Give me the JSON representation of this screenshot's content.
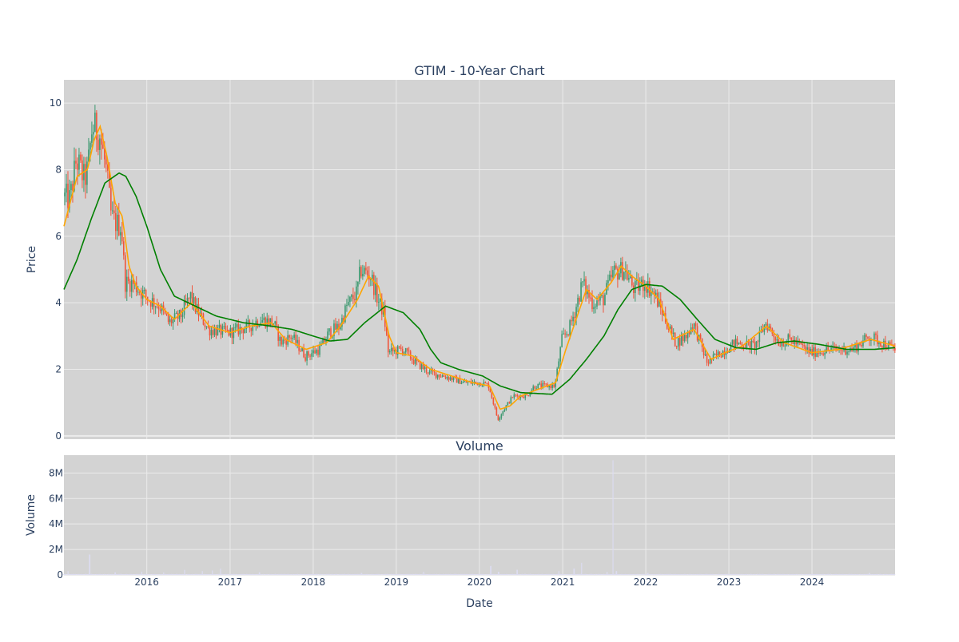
{
  "chart_data": [
    {
      "type": "candlestick",
      "title": "GTIM - 10-Year Chart",
      "xlabel": "",
      "ylabel": "Price",
      "x_range": [
        "2015-01-02",
        "2024-12-31"
      ],
      "ylim": [
        -0.1,
        10.7
      ],
      "y_ticks": [
        0,
        2,
        4,
        6,
        8,
        10
      ],
      "grid": true,
      "up_color": "#3d9970",
      "down_color": "#ef553b",
      "background": "#d3d3d3",
      "price_anchors": [
        [
          "2015-01-02",
          7.2
        ],
        [
          "2015-02-01",
          7.1
        ],
        [
          "2015-03-01",
          8.3
        ],
        [
          "2015-04-05",
          7.7
        ],
        [
          "2015-04-20",
          8.0
        ],
        [
          "2015-05-10",
          9.3
        ],
        [
          "2015-06-10",
          9.1
        ],
        [
          "2015-07-10",
          8.0
        ],
        [
          "2015-08-01",
          6.6
        ],
        [
          "2015-08-20",
          6.4
        ],
        [
          "2015-09-15",
          6.3
        ],
        [
          "2015-10-01",
          4.6
        ],
        [
          "2015-11-01",
          4.6
        ],
        [
          "2015-12-15",
          4.3
        ],
        [
          "2016-01-15",
          4.1
        ],
        [
          "2016-03-01",
          3.9
        ],
        [
          "2016-04-10",
          3.4
        ],
        [
          "2016-06-01",
          3.6
        ],
        [
          "2016-07-15",
          4.2
        ],
        [
          "2016-08-01",
          3.9
        ],
        [
          "2016-10-01",
          3.2
        ],
        [
          "2017-01-01",
          3.1
        ],
        [
          "2017-04-01",
          3.3
        ],
        [
          "2017-05-15",
          3.5
        ],
        [
          "2017-07-15",
          3.4
        ],
        [
          "2017-08-15",
          2.8
        ],
        [
          "2017-10-01",
          3.0
        ],
        [
          "2017-12-01",
          2.4
        ],
        [
          "2018-02-01",
          2.6
        ],
        [
          "2018-03-15",
          3.1
        ],
        [
          "2018-05-01",
          3.3
        ],
        [
          "2018-06-01",
          3.9
        ],
        [
          "2018-07-15",
          4.3
        ],
        [
          "2018-08-01",
          5.0
        ],
        [
          "2018-09-15",
          4.8
        ],
        [
          "2018-10-15",
          4.1
        ],
        [
          "2018-11-10",
          3.7
        ],
        [
          "2018-12-01",
          2.5
        ],
        [
          "2019-02-01",
          2.6
        ],
        [
          "2019-04-01",
          2.2
        ],
        [
          "2019-06-01",
          1.9
        ],
        [
          "2019-08-01",
          1.8
        ],
        [
          "2019-11-01",
          1.6
        ],
        [
          "2020-01-15",
          1.6
        ],
        [
          "2020-02-15",
          1.5
        ],
        [
          "2020-03-25",
          0.5
        ],
        [
          "2020-05-01",
          0.9
        ],
        [
          "2020-06-01",
          1.2
        ],
        [
          "2020-08-01",
          1.2
        ],
        [
          "2020-09-01",
          1.5
        ],
        [
          "2020-12-01",
          1.5
        ],
        [
          "2021-01-01",
          2.9
        ],
        [
          "2021-02-01",
          3.2
        ],
        [
          "2021-03-01",
          3.8
        ],
        [
          "2021-04-01",
          4.6
        ],
        [
          "2021-05-15",
          4.0
        ],
        [
          "2021-07-01",
          4.1
        ],
        [
          "2021-08-15",
          4.9
        ],
        [
          "2021-10-01",
          5.0
        ],
        [
          "2021-11-15",
          4.4
        ],
        [
          "2022-01-01",
          4.6
        ],
        [
          "2022-02-15",
          4.2
        ],
        [
          "2022-04-01",
          3.5
        ],
        [
          "2022-05-15",
          2.8
        ],
        [
          "2022-07-01",
          3.0
        ],
        [
          "2022-08-01",
          3.4
        ],
        [
          "2022-10-01",
          2.2
        ],
        [
          "2022-12-01",
          2.5
        ],
        [
          "2023-02-01",
          2.8
        ],
        [
          "2023-05-01",
          2.7
        ],
        [
          "2023-06-15",
          3.4
        ],
        [
          "2023-08-15",
          2.8
        ],
        [
          "2023-10-01",
          2.9
        ],
        [
          "2024-01-01",
          2.5
        ],
        [
          "2024-04-01",
          2.6
        ],
        [
          "2024-07-01",
          2.6
        ],
        [
          "2024-09-15",
          3.0
        ],
        [
          "2024-12-31",
          2.6
        ]
      ],
      "series": [
        {
          "values": [
            [
              "2015-01-02",
              6.3
            ],
            [
              "2015-03-01",
              7.8
            ],
            [
              "2015-04-15",
              8.0
            ],
            [
              "2015-05-15",
              8.9
            ],
            [
              "2015-06-10",
              9.3
            ],
            [
              "2015-07-10",
              8.4
            ],
            [
              "2015-08-15",
              7.0
            ],
            [
              "2015-09-15",
              6.6
            ],
            [
              "2015-10-15",
              5.1
            ],
            [
              "2015-11-15",
              4.5
            ],
            [
              "2016-01-01",
              4.1
            ],
            [
              "2016-03-01",
              3.9
            ],
            [
              "2016-05-01",
              3.5
            ],
            [
              "2016-07-15",
              4.0
            ],
            [
              "2016-10-01",
              3.3
            ],
            [
              "2017-01-01",
              3.1
            ],
            [
              "2017-04-01",
              3.3
            ],
            [
              "2017-07-01",
              3.4
            ],
            [
              "2017-09-01",
              2.9
            ],
            [
              "2017-12-01",
              2.6
            ],
            [
              "2018-03-01",
              2.8
            ],
            [
              "2018-05-01",
              3.3
            ],
            [
              "2018-07-15",
              4.1
            ],
            [
              "2018-09-01",
              4.8
            ],
            [
              "2018-10-15",
              4.5
            ],
            [
              "2018-12-01",
              3.0
            ],
            [
              "2019-01-01",
              2.5
            ],
            [
              "2019-03-15",
              2.4
            ],
            [
              "2019-06-01",
              2.0
            ],
            [
              "2019-09-01",
              1.8
            ],
            [
              "2019-12-01",
              1.6
            ],
            [
              "2020-02-15",
              1.5
            ],
            [
              "2020-04-01",
              0.8
            ],
            [
              "2020-05-15",
              0.9
            ],
            [
              "2020-07-01",
              1.2
            ],
            [
              "2020-09-15",
              1.4
            ],
            [
              "2020-12-01",
              1.6
            ],
            [
              "2021-01-15",
              2.6
            ],
            [
              "2021-03-01",
              3.5
            ],
            [
              "2021-04-15",
              4.4
            ],
            [
              "2021-06-01",
              4.1
            ],
            [
              "2021-08-01",
              4.6
            ],
            [
              "2021-09-15",
              5.1
            ],
            [
              "2021-11-01",
              4.8
            ],
            [
              "2022-01-01",
              4.5
            ],
            [
              "2022-03-01",
              4.1
            ],
            [
              "2022-05-01",
              2.9
            ],
            [
              "2022-08-01",
              3.2
            ],
            [
              "2022-10-15",
              2.3
            ],
            [
              "2022-12-15",
              2.5
            ],
            [
              "2023-03-01",
              2.7
            ],
            [
              "2023-06-15",
              3.3
            ],
            [
              "2023-09-01",
              2.8
            ],
            [
              "2024-01-01",
              2.5
            ],
            [
              "2024-05-01",
              2.6
            ],
            [
              "2024-09-15",
              2.9
            ],
            [
              "2024-12-31",
              2.7
            ]
          ],
          "color": "#ffa500"
        },
        {
          "values": [
            [
              "2015-01-02",
              4.4
            ],
            [
              "2015-03-01",
              5.3
            ],
            [
              "2015-05-01",
              6.5
            ],
            [
              "2015-07-01",
              7.6
            ],
            [
              "2015-09-01",
              7.9
            ],
            [
              "2015-10-01",
              7.8
            ],
            [
              "2015-11-15",
              7.2
            ],
            [
              "2016-01-01",
              6.3
            ],
            [
              "2016-03-01",
              5.0
            ],
            [
              "2016-05-01",
              4.2
            ],
            [
              "2016-08-01",
              3.9
            ],
            [
              "2016-11-01",
              3.6
            ],
            [
              "2017-03-01",
              3.4
            ],
            [
              "2017-07-01",
              3.3
            ],
            [
              "2017-10-01",
              3.2
            ],
            [
              "2018-01-01",
              3.0
            ],
            [
              "2018-03-15",
              2.85
            ],
            [
              "2018-06-01",
              2.9
            ],
            [
              "2018-08-15",
              3.4
            ],
            [
              "2018-11-15",
              3.9
            ],
            [
              "2019-02-01",
              3.7
            ],
            [
              "2019-04-15",
              3.2
            ],
            [
              "2019-06-01",
              2.6
            ],
            [
              "2019-07-15",
              2.2
            ],
            [
              "2019-10-01",
              2.0
            ],
            [
              "2020-01-15",
              1.8
            ],
            [
              "2020-04-01",
              1.5
            ],
            [
              "2020-07-01",
              1.3
            ],
            [
              "2020-11-15",
              1.25
            ],
            [
              "2021-02-01",
              1.7
            ],
            [
              "2021-04-15",
              2.3
            ],
            [
              "2021-07-01",
              3.0
            ],
            [
              "2021-09-01",
              3.8
            ],
            [
              "2021-11-01",
              4.4
            ],
            [
              "2022-01-01",
              4.55
            ],
            [
              "2022-03-15",
              4.5
            ],
            [
              "2022-06-01",
              4.1
            ],
            [
              "2022-08-15",
              3.5
            ],
            [
              "2022-11-01",
              2.9
            ],
            [
              "2023-02-01",
              2.65
            ],
            [
              "2023-05-01",
              2.6
            ],
            [
              "2023-08-01",
              2.8
            ],
            [
              "2023-10-15",
              2.85
            ],
            [
              "2024-02-01",
              2.75
            ],
            [
              "2024-06-01",
              2.6
            ],
            [
              "2024-10-01",
              2.6
            ],
            [
              "2024-12-31",
              2.65
            ]
          ],
          "color": "#008000"
        }
      ]
    },
    {
      "type": "bar",
      "title": "Volume",
      "xlabel": "Date",
      "ylabel": "Volume",
      "x_range": [
        "2015-01-02",
        "2024-12-31"
      ],
      "ylim": [
        0,
        9400000
      ],
      "y_ticks": [
        0,
        2000000,
        4000000,
        6000000,
        8000000
      ],
      "y_tick_labels": [
        "0",
        "2M",
        "4M",
        "6M",
        "8M"
      ],
      "x_tick_labels": [
        "2016",
        "2017",
        "2018",
        "2019",
        "2020",
        "2021",
        "2022",
        "2023",
        "2024"
      ],
      "grid": true,
      "bar_color": "#dcdcf0",
      "background": "#d3d3d3",
      "baseline_volume": 60000,
      "spikes": [
        [
          "2015-01-20",
          300000
        ],
        [
          "2015-04-25",
          1600000
        ],
        [
          "2015-08-15",
          200000
        ],
        [
          "2015-12-10",
          250000
        ],
        [
          "2016-03-15",
          200000
        ],
        [
          "2016-06-15",
          400000
        ],
        [
          "2016-09-01",
          300000
        ],
        [
          "2016-10-15",
          350000
        ],
        [
          "2016-11-20",
          500000
        ],
        [
          "2017-05-10",
          200000
        ],
        [
          "2018-08-01",
          150000
        ],
        [
          "2019-05-01",
          250000
        ],
        [
          "2020-02-20",
          700000
        ],
        [
          "2020-03-25",
          250000
        ],
        [
          "2020-06-15",
          400000
        ],
        [
          "2020-12-15",
          300000
        ],
        [
          "2021-02-20",
          500000
        ],
        [
          "2021-03-25",
          950000
        ],
        [
          "2021-07-15",
          250000
        ],
        [
          "2021-08-10",
          9000000
        ],
        [
          "2021-08-25",
          300000
        ],
        [
          "2022-01-10",
          150000
        ],
        [
          "2024-09-10",
          150000
        ]
      ]
    }
  ]
}
